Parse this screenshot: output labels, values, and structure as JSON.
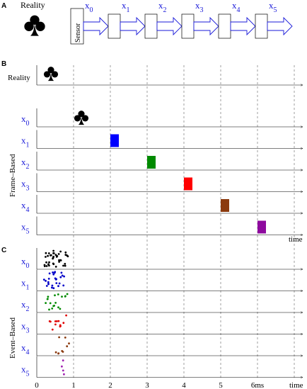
{
  "panel_a": {
    "letter": "A",
    "reality_label": "Reality",
    "sensor_label": "Sensor",
    "outputs": [
      {
        "name": "x",
        "sub": "0"
      },
      {
        "name": "x",
        "sub": "1"
      },
      {
        "name": "x",
        "sub": "2"
      },
      {
        "name": "x",
        "sub": "3"
      },
      {
        "name": "x",
        "sub": "4"
      },
      {
        "name": "x",
        "sub": "5"
      }
    ]
  },
  "panel_b": {
    "letter": "B",
    "reality_label": "Reality",
    "side_label": "Frame–Based",
    "time_label": "time",
    "rows": [
      {
        "name": "x",
        "sub": "0",
        "frame_time": 1,
        "mark": "club"
      },
      {
        "name": "x",
        "sub": "1",
        "frame_time": 2,
        "color": "#0000ff"
      },
      {
        "name": "x",
        "sub": "2",
        "frame_time": 3,
        "color": "#008a00"
      },
      {
        "name": "x",
        "sub": "3",
        "frame_time": 4,
        "color": "#ff0000"
      },
      {
        "name": "x",
        "sub": "4",
        "frame_time": 5,
        "color": "#8b3a0e"
      },
      {
        "name": "x",
        "sub": "5",
        "frame_time": 6,
        "color": "#8e0a9e"
      }
    ]
  },
  "panel_c": {
    "letter": "C",
    "side_label": "Event–Based",
    "time_label": "time",
    "rows": [
      {
        "name": "x",
        "sub": "0",
        "color": "#000000"
      },
      {
        "name": "x",
        "sub": "1",
        "color": "#0000c8"
      },
      {
        "name": "x",
        "sub": "2",
        "color": "#008a00"
      },
      {
        "name": "x",
        "sub": "3",
        "color": "#e00000"
      },
      {
        "name": "x",
        "sub": "4",
        "color": "#8b3a0e"
      },
      {
        "name": "x",
        "sub": "5",
        "color": "#a020b0"
      }
    ],
    "tick_labels": [
      "0",
      "1",
      "2",
      "3",
      "4",
      "5",
      "6ms"
    ]
  }
}
